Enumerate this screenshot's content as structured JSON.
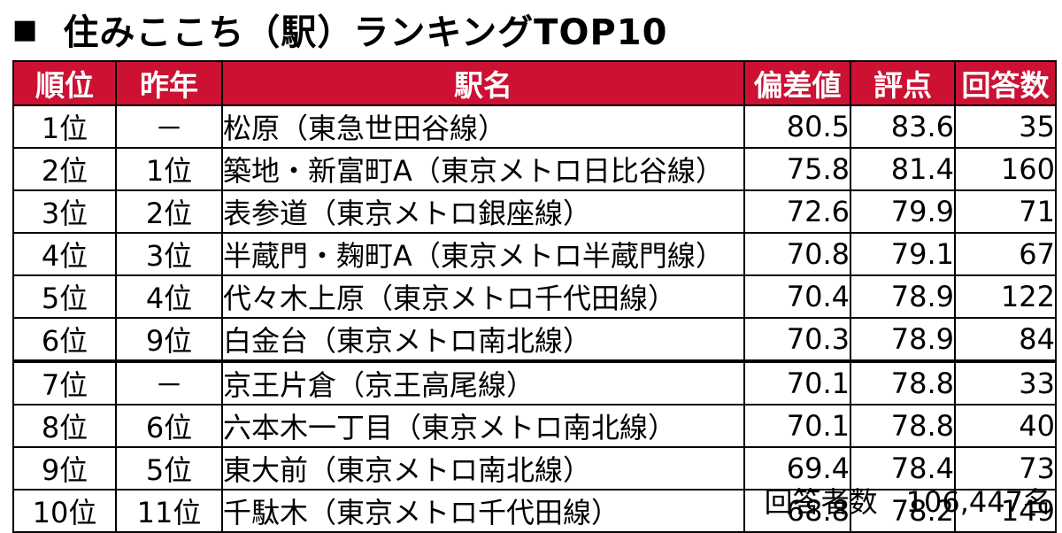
{
  "title": "住みここち（駅）ランキングTOP10",
  "title_marker": "■",
  "header_color": "#cc1133",
  "columns": [
    "順位",
    "昨年",
    "駅名",
    "偏差値",
    "評点",
    "回答数"
  ],
  "rows": [
    {
      "rank": "1位",
      "prev": "－",
      "station": "松原（東急世田谷線）",
      "deviation": "80.5",
      "score": "83.6",
      "responses": "35"
    },
    {
      "rank": "2位",
      "prev": "1位",
      "station": "築地・新富町A（東京メトロ日比谷線）",
      "deviation": "75.8",
      "score": "81.4",
      "responses": "160"
    },
    {
      "rank": "3位",
      "prev": "2位",
      "station": "表参道（東京メトロ銀座線）",
      "deviation": "72.6",
      "score": "79.9",
      "responses": "71"
    },
    {
      "rank": "4位",
      "prev": "3位",
      "station": "半蔵門・麹町A（東京メトロ半蔵門線）",
      "deviation": "70.8",
      "score": "79.1",
      "responses": "67"
    },
    {
      "rank": "5位",
      "prev": "4位",
      "station": "代々木上原（東京メトロ千代田線）",
      "deviation": "70.4",
      "score": "78.9",
      "responses": "122"
    },
    {
      "rank": "6位",
      "prev": "9位",
      "station": "白金台（東京メトロ南北線）",
      "deviation": "70.3",
      "score": "78.9",
      "responses": "84"
    },
    {
      "rank": "7位",
      "prev": "－",
      "station": "京王片倉（京王高尾線）",
      "deviation": "70.1",
      "score": "78.8",
      "responses": "33"
    },
    {
      "rank": "8位",
      "prev": "6位",
      "station": "六本木一丁目（東京メトロ南北線）",
      "deviation": "70.1",
      "score": "78.8",
      "responses": "40"
    },
    {
      "rank": "9位",
      "prev": "5位",
      "station": "東大前（東京メトロ南北線）",
      "deviation": "69.4",
      "score": "78.4",
      "responses": "73"
    },
    {
      "rank": "10位",
      "prev": "11位",
      "station": "千駄木（東京メトロ千代田線）",
      "deviation": "68.8",
      "score": "78.2",
      "responses": "149"
    }
  ],
  "footer": "回答者数　106,447名"
}
